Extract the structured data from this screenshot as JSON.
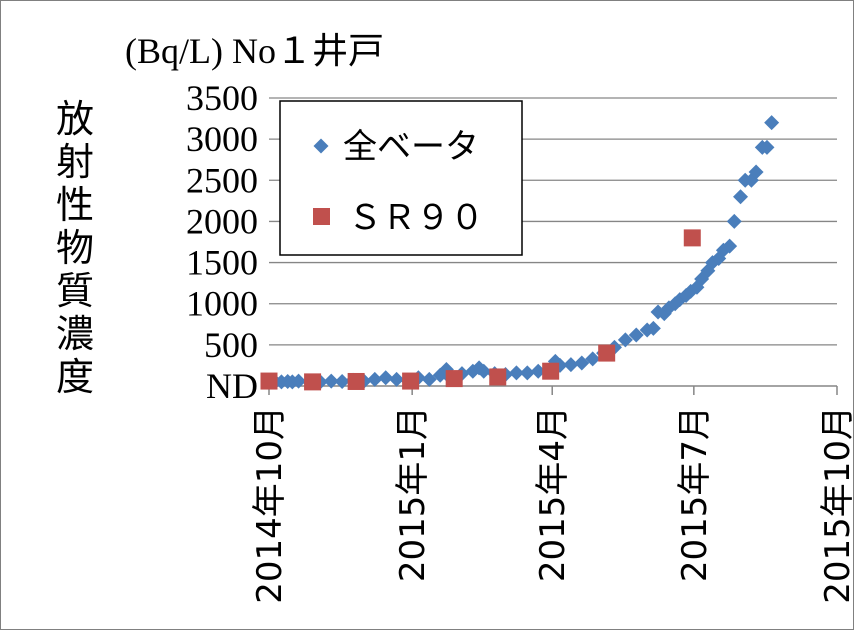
{
  "chart_data": {
    "type": "scatter",
    "title": "(Bq/L) No１井戸",
    "ylabel": "放射性物質濃度",
    "xlabel": "",
    "y_min_label": "ND",
    "y_ticks": [
      500,
      1000,
      1500,
      2000,
      2500,
      3000,
      3500
    ],
    "ylim": [
      0,
      3500
    ],
    "x_ticks": [
      "2014年10月",
      "2015年1月",
      "2015年4月",
      "2015年7月",
      "2015年10月"
    ],
    "x_tick_dates": [
      "2014-10-01",
      "2015-01-01",
      "2015-04-01",
      "2015-07-01",
      "2015-10-01"
    ],
    "grid": true,
    "legend_position": "top-left",
    "series": [
      {
        "name": "全ベータ",
        "marker": "diamond",
        "color": "#4A7EBB",
        "points": [
          [
            "2014-10-05",
            50
          ],
          [
            "2014-10-09",
            50
          ],
          [
            "2014-10-13",
            55
          ],
          [
            "2014-10-16",
            50
          ],
          [
            "2014-10-20",
            60
          ],
          [
            "2014-10-27",
            50
          ],
          [
            "2014-11-03",
            50
          ],
          [
            "2014-11-10",
            60
          ],
          [
            "2014-11-17",
            55
          ],
          [
            "2014-11-24",
            70
          ],
          [
            "2014-12-01",
            60
          ],
          [
            "2014-12-08",
            80
          ],
          [
            "2014-12-15",
            100
          ],
          [
            "2014-12-22",
            80
          ],
          [
            "2014-12-29",
            70
          ],
          [
            "2015-01-05",
            100
          ],
          [
            "2015-01-12",
            80
          ],
          [
            "2015-01-19",
            130
          ],
          [
            "2015-01-23",
            200
          ],
          [
            "2015-01-26",
            90
          ],
          [
            "2015-02-02",
            150
          ],
          [
            "2015-02-09",
            180
          ],
          [
            "2015-02-13",
            220
          ],
          [
            "2015-02-16",
            180
          ],
          [
            "2015-02-23",
            150
          ],
          [
            "2015-03-02",
            140
          ],
          [
            "2015-03-09",
            160
          ],
          [
            "2015-03-16",
            160
          ],
          [
            "2015-03-23",
            180
          ],
          [
            "2015-03-30",
            190
          ],
          [
            "2015-04-03",
            300
          ],
          [
            "2015-04-06",
            250
          ],
          [
            "2015-04-13",
            260
          ],
          [
            "2015-04-20",
            280
          ],
          [
            "2015-04-27",
            330
          ],
          [
            "2015-05-04",
            400
          ],
          [
            "2015-05-11",
            470
          ],
          [
            "2015-05-18",
            560
          ],
          [
            "2015-05-25",
            620
          ],
          [
            "2015-06-01",
            680
          ],
          [
            "2015-06-05",
            700
          ],
          [
            "2015-06-08",
            900
          ],
          [
            "2015-06-12",
            880
          ],
          [
            "2015-06-15",
            950
          ],
          [
            "2015-06-19",
            1000
          ],
          [
            "2015-06-22",
            1050
          ],
          [
            "2015-06-26",
            1100
          ],
          [
            "2015-06-29",
            1150
          ],
          [
            "2015-07-03",
            1200
          ],
          [
            "2015-07-06",
            1300
          ],
          [
            "2015-07-10",
            1400
          ],
          [
            "2015-07-13",
            1500
          ],
          [
            "2015-07-17",
            1550
          ],
          [
            "2015-07-20",
            1650
          ],
          [
            "2015-07-24",
            1700
          ],
          [
            "2015-07-27",
            2000
          ],
          [
            "2015-07-31",
            2300
          ],
          [
            "2015-08-03",
            2500
          ],
          [
            "2015-08-07",
            2500
          ],
          [
            "2015-08-10",
            2600
          ],
          [
            "2015-08-14",
            2900
          ],
          [
            "2015-08-17",
            2900
          ],
          [
            "2015-08-20",
            3200
          ]
        ]
      },
      {
        "name": "ＳＲ９０",
        "marker": "square",
        "color": "#C0504D",
        "points": [
          [
            "2014-10-01",
            60
          ],
          [
            "2014-10-29",
            50
          ],
          [
            "2014-11-26",
            55
          ],
          [
            "2014-12-31",
            60
          ],
          [
            "2015-01-28",
            90
          ],
          [
            "2015-02-25",
            110
          ],
          [
            "2015-03-31",
            180
          ],
          [
            "2015-05-06",
            400
          ],
          [
            "2015-06-30",
            1800
          ]
        ]
      }
    ]
  }
}
